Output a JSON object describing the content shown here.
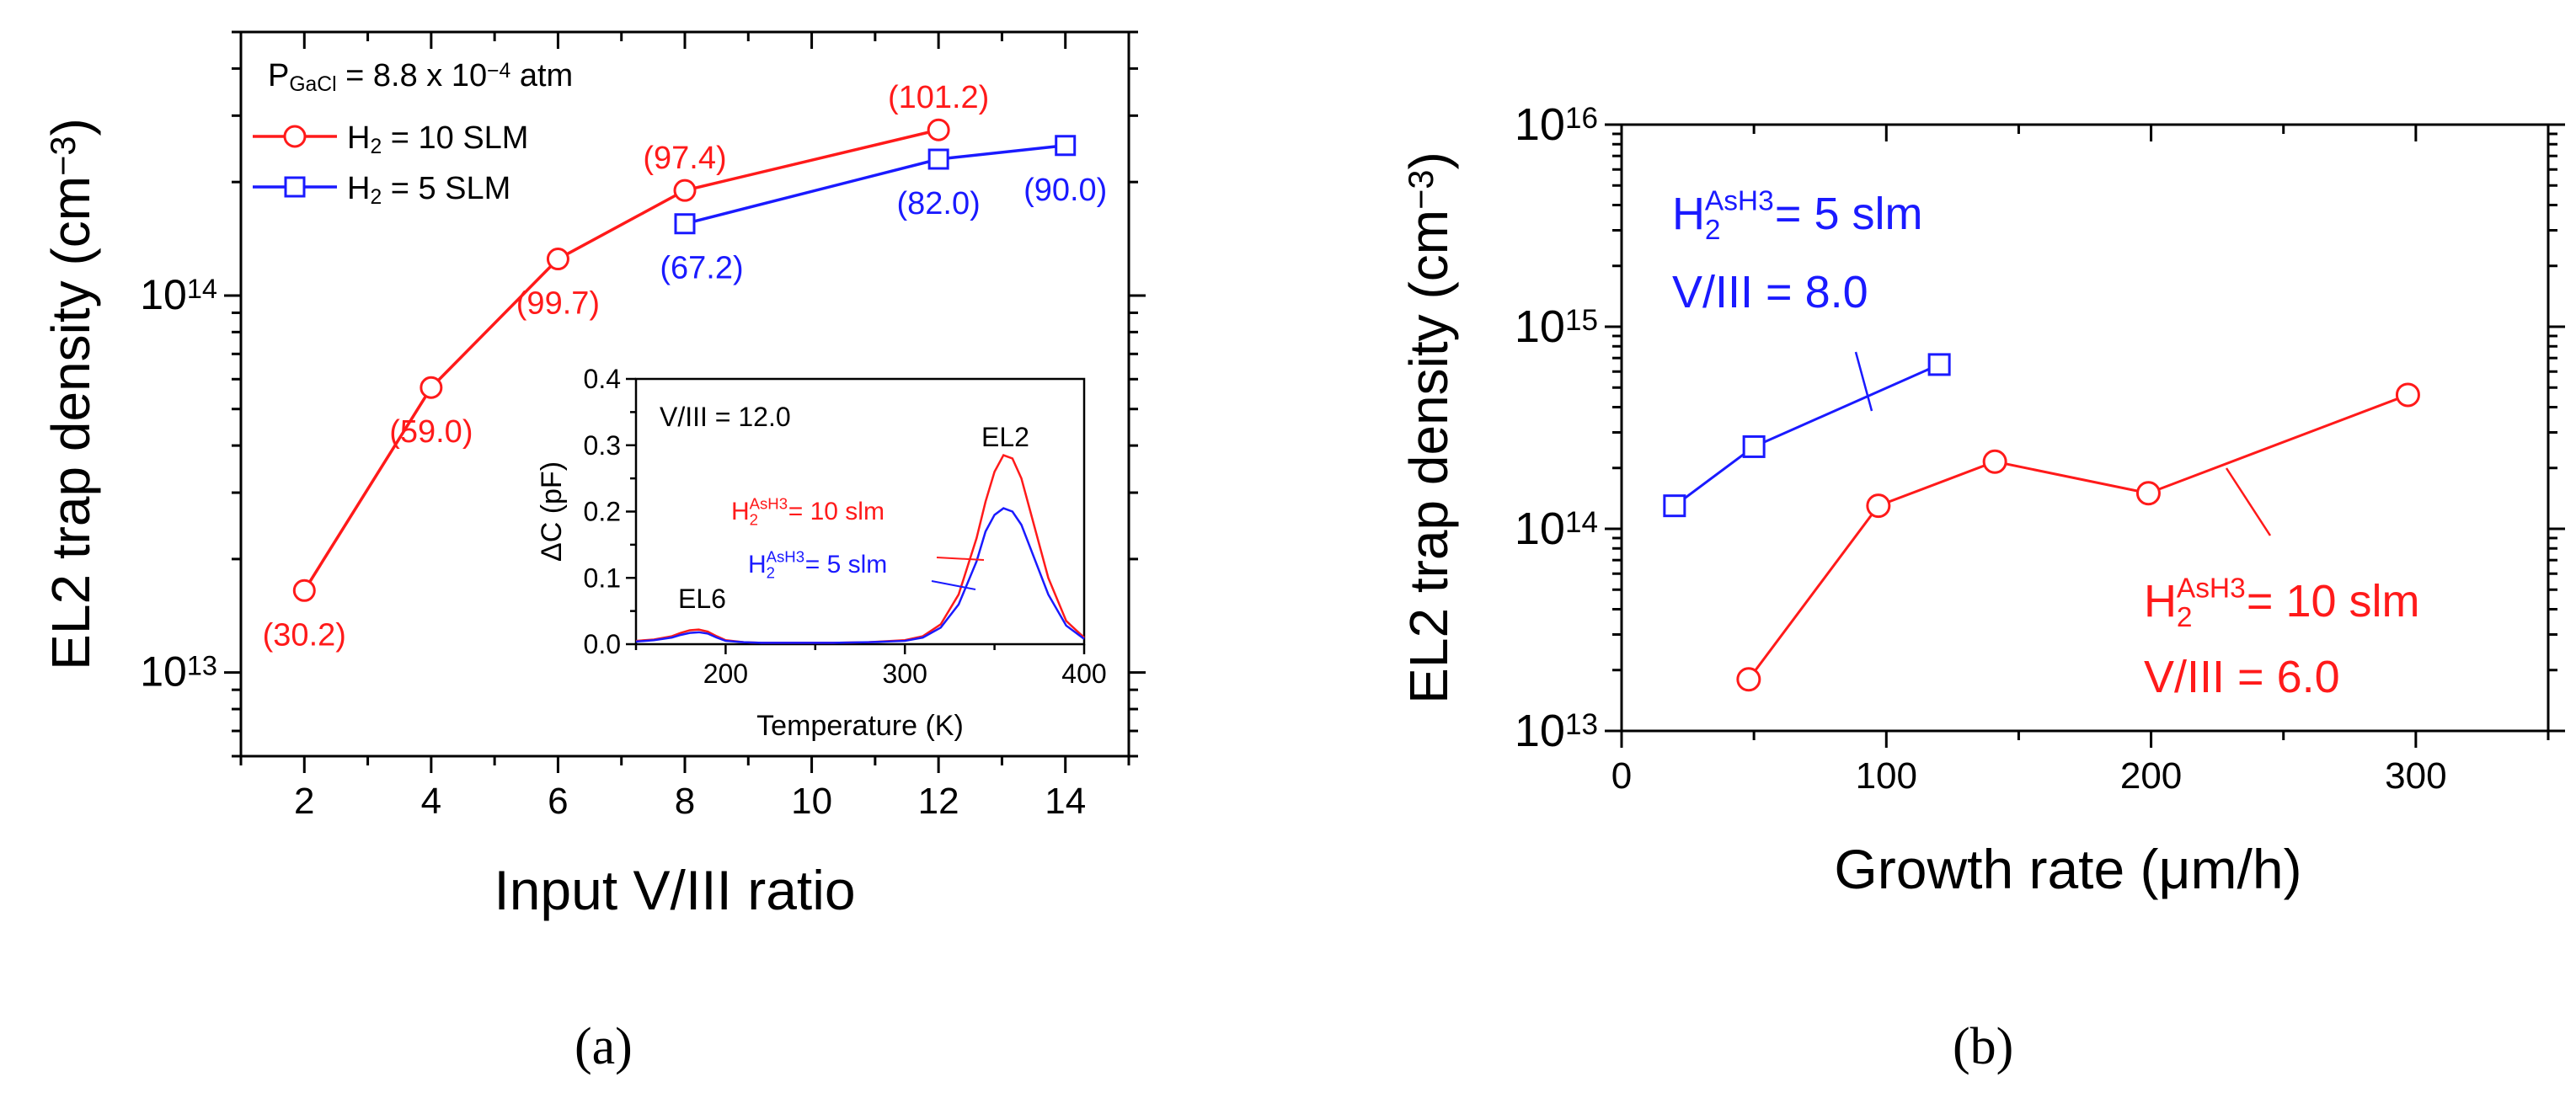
{
  "colors": {
    "red": "#ff1a1a",
    "blue": "#1a1aff",
    "axis": "#000000"
  },
  "captions": {
    "a": "(a)",
    "b": "(b)"
  },
  "chart_data": [
    {
      "type": "line",
      "panel": "a",
      "ylabel": "EL2 trap density (cm",
      "ylabel_exp": "−3",
      "ylabel_close": ")",
      "xlabel": "Input V/III ratio",
      "xlim": [
        1,
        15
      ],
      "ylim_log": [
        6000000000000.0,
        500000000000000.0
      ],
      "xticks": [
        2,
        4,
        6,
        8,
        10,
        12,
        14
      ],
      "yticks": [
        {
          "base": "10",
          "exp": "13",
          "v": 10000000000000.0
        },
        {
          "base": "10",
          "exp": "14",
          "v": 100000000000000.0
        }
      ],
      "legend": {
        "header": {
          "p": "P",
          "sub": "GaCl",
          "rest": " = 8.8 x 10",
          "exp": "−4",
          "unit": " atm"
        },
        "entries": [
          {
            "pre": "H",
            "sub": "2",
            "rest": " = 10 SLM"
          },
          {
            "pre": "H",
            "sub": "2",
            "rest": " = 5 SLM"
          }
        ]
      },
      "series": [
        {
          "name": "H2 = 10 SLM",
          "color": "red",
          "marker": "circle",
          "x": [
            2,
            4,
            6,
            8,
            12
          ],
          "y": [
            16500000000000.0,
            57000000000000.0,
            125000000000000.0,
            190000000000000.0,
            275000000000000.0
          ],
          "labels": [
            "(30.2)",
            "(59.0)",
            "(99.7)",
            "(97.4)",
            "(101.2)"
          ]
        },
        {
          "name": "H2 = 5 SLM",
          "color": "blue",
          "marker": "square",
          "x": [
            8,
            12,
            14
          ],
          "y": [
            155000000000000.0,
            230000000000000.0,
            250000000000000.0
          ],
          "labels": [
            "(67.2)",
            "(82.0)",
            "(90.0)"
          ]
        }
      ],
      "inset": {
        "type": "line",
        "xlabel": "Temperature (K)",
        "ylabel": "ΔC (pF)",
        "xlim": [
          150,
          400
        ],
        "ylim": [
          0,
          0.4
        ],
        "xticks": [
          200,
          300,
          400
        ],
        "yticks": [
          0.0,
          0.1,
          0.2,
          0.3,
          0.4
        ],
        "ytick_labels": [
          "0.0",
          "0.1",
          "0.2",
          "0.3",
          "0.4"
        ],
        "text": "V/III = 12.0",
        "peak_labels": [
          "EL6",
          "EL2"
        ],
        "series": [
          {
            "name": "H2AsH3 = 10 slm",
            "color": "red",
            "pre": "H",
            "sub": "2",
            "sup": "AsH3",
            "rest": " = 10 slm",
            "x": [
              150,
              160,
              170,
              175,
              180,
              185,
              190,
              195,
              200,
              210,
              220,
              240,
              260,
              280,
              300,
              310,
              320,
              330,
              340,
              345,
              350,
              355,
              360,
              365,
              370,
              380,
              390,
              400
            ],
            "y": [
              0.005,
              0.007,
              0.012,
              0.017,
              0.021,
              0.022,
              0.019,
              0.012,
              0.006,
              0.003,
              0.002,
              0.002,
              0.002,
              0.003,
              0.006,
              0.012,
              0.03,
              0.075,
              0.16,
              0.215,
              0.26,
              0.285,
              0.28,
              0.25,
              0.2,
              0.1,
              0.035,
              0.01
            ]
          },
          {
            "name": "H2AsH3 = 5 slm",
            "color": "blue",
            "pre": "H",
            "sub": "2",
            "sup": "AsH3",
            "rest": " = 5 slm",
            "x": [
              150,
              160,
              170,
              175,
              180,
              185,
              190,
              195,
              200,
              210,
              220,
              240,
              260,
              280,
              300,
              310,
              320,
              330,
              340,
              345,
              350,
              355,
              360,
              365,
              370,
              380,
              390,
              400
            ],
            "y": [
              0.004,
              0.006,
              0.01,
              0.014,
              0.017,
              0.018,
              0.016,
              0.01,
              0.005,
              0.003,
              0.002,
              0.002,
              0.002,
              0.003,
              0.005,
              0.01,
              0.025,
              0.06,
              0.125,
              0.17,
              0.195,
              0.205,
              0.2,
              0.18,
              0.145,
              0.075,
              0.028,
              0.008
            ]
          }
        ]
      }
    },
    {
      "type": "line",
      "panel": "b",
      "ylabel": "EL2 trap density (cm",
      "ylabel_exp": "−3",
      "ylabel_close": ")",
      "xlabel": "Growth rate (μm/h)",
      "xlim": [
        0,
        350
      ],
      "ylim_log": [
        10000000000000.0,
        1e+16
      ],
      "xticks": [
        0,
        100,
        200,
        300
      ],
      "yticks": [
        {
          "base": "10",
          "exp": "13",
          "v": 10000000000000.0
        },
        {
          "base": "10",
          "exp": "14",
          "v": 100000000000000.0
        },
        {
          "base": "10",
          "exp": "15",
          "v": 1000000000000000.0
        },
        {
          "base": "10",
          "exp": "16",
          "v": 1e+16
        }
      ],
      "series": [
        {
          "name": "H2AsH3 = 5 slm",
          "color": "blue",
          "marker": "square",
          "x": [
            20,
            50,
            120
          ],
          "y": [
            130000000000000.0,
            255000000000000.0,
            650000000000000.0
          ],
          "annot": {
            "pre": "H",
            "sub": "2",
            "sup": "AsH3",
            "rest": " = 5 slm",
            "line2": "V/III = 8.0"
          }
        },
        {
          "name": "H2AsH3 = 10 slm",
          "color": "red",
          "marker": "circle",
          "x": [
            48,
            97,
            141,
            199,
            297
          ],
          "y": [
            18000000000000.0,
            130000000000000.0,
            215000000000000.0,
            150000000000000.0,
            460000000000000.0
          ],
          "annot": {
            "pre": "H",
            "sub": "2",
            "sup": "AsH3",
            "rest": " = 10 slm",
            "line2": "V/III = 6.0"
          }
        }
      ]
    }
  ]
}
